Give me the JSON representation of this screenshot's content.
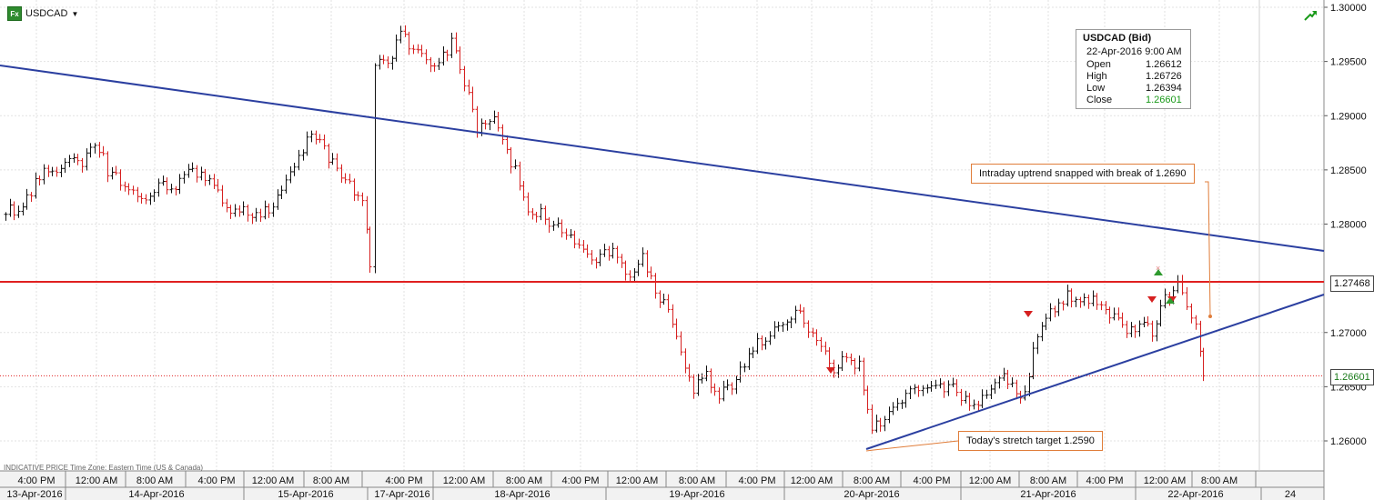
{
  "header": {
    "symbol": "USDCAD",
    "fx_badge": "Fx"
  },
  "info": {
    "title": "USDCAD (Bid)",
    "date": "22-Apr-2016 9:00 AM",
    "rows": [
      {
        "label": "Open",
        "value": "1.26612"
      },
      {
        "label": "High",
        "value": "1.26726"
      },
      {
        "label": "Low",
        "value": "1.26394"
      },
      {
        "label": "Close",
        "value": "1.26601"
      }
    ],
    "close_color": "#1a9a1a"
  },
  "annotations": {
    "uptrend": "Intraday uptrend snapped with break of 1.2690",
    "target": "Today's stretch target 1.2590"
  },
  "footer": {
    "text": "INDICATIVE PRICE   Time Zone: Eastern Time (US & Canada)"
  },
  "price_labels": {
    "resistance": "1.27468",
    "current": "1.26601"
  },
  "colors": {
    "up": "#111111",
    "down": "#d62020",
    "trend": "#2b3fa0",
    "resistance": "#e02020",
    "annot": "#e07d3a",
    "grid": "#e2e2e2"
  },
  "chart_data": {
    "type": "ohlc",
    "y_range": [
      1.255,
      1.3
    ],
    "y_ticks": [
      "1.30000",
      "1.29500",
      "1.29000",
      "1.28500",
      "1.28000",
      "1.27000",
      "1.26500",
      "1.26000"
    ],
    "resistance_level": 1.27468,
    "current_level": 1.26601,
    "time_ticks": [
      "4:00 PM",
      "12:00 AM",
      "8:00 AM",
      "4:00 PM",
      "12:00 AM",
      "8:00 AM",
      "4:00 PM",
      "12:00 AM",
      "8:00 AM",
      "4:00 PM",
      "12:00 AM",
      "8:00 AM",
      "4:00 PM",
      "12:00 AM",
      "8:00 AM",
      "4:00 PM",
      "12:00 AM",
      "8:00 AM",
      "4:00 PM",
      "12:00 AM",
      "8:00 AM"
    ],
    "date_ticks": [
      "13-Apr-2016",
      "14-Apr-2016",
      "15-Apr-2016",
      "17-Apr-2016",
      "18-Apr-2016",
      "19-Apr-2016",
      "20-Apr-2016",
      "21-Apr-2016",
      "22-Apr-2016",
      "24"
    ],
    "series": [
      {
        "x": 0,
        "c": 1.2815
      },
      {
        "x": 14,
        "c": 1.2808
      },
      {
        "x": 28,
        "c": 1.283
      },
      {
        "x": 42,
        "c": 1.2852
      },
      {
        "x": 56,
        "c": 1.2848
      },
      {
        "x": 70,
        "c": 1.2862
      },
      {
        "x": 84,
        "c": 1.2858
      },
      {
        "x": 98,
        "c": 1.2878
      },
      {
        "x": 112,
        "c": 1.285
      },
      {
        "x": 126,
        "c": 1.2838
      },
      {
        "x": 140,
        "c": 1.2832
      },
      {
        "x": 154,
        "c": 1.2822
      },
      {
        "x": 168,
        "c": 1.2838
      },
      {
        "x": 182,
        "c": 1.283
      },
      {
        "x": 196,
        "c": 1.2848
      },
      {
        "x": 210,
        "c": 1.2846
      },
      {
        "x": 224,
        "c": 1.2842
      },
      {
        "x": 238,
        "c": 1.2818
      },
      {
        "x": 252,
        "c": 1.2812
      },
      {
        "x": 266,
        "c": 1.2814
      },
      {
        "x": 280,
        "c": 1.2808
      },
      {
        "x": 294,
        "c": 1.2815
      },
      {
        "x": 308,
        "c": 1.2838
      },
      {
        "x": 322,
        "c": 1.286
      },
      {
        "x": 336,
        "c": 1.2885
      },
      {
        "x": 350,
        "c": 1.287
      },
      {
        "x": 364,
        "c": 1.2848
      },
      {
        "x": 378,
        "c": 1.2835
      },
      {
        "x": 392,
        "c": 1.2825
      },
      {
        "x": 400,
        "c": 1.2765
      },
      {
        "x": 406,
        "c": 1.2952
      },
      {
        "x": 420,
        "c": 1.295
      },
      {
        "x": 434,
        "c": 1.2975
      },
      {
        "x": 448,
        "c": 1.2962
      },
      {
        "x": 462,
        "c": 1.2952
      },
      {
        "x": 476,
        "c": 1.2948
      },
      {
        "x": 490,
        "c": 1.2968
      },
      {
        "x": 504,
        "c": 1.293
      },
      {
        "x": 518,
        "c": 1.2888
      },
      {
        "x": 532,
        "c": 1.29
      },
      {
        "x": 546,
        "c": 1.288
      },
      {
        "x": 560,
        "c": 1.2848
      },
      {
        "x": 574,
        "c": 1.281
      },
      {
        "x": 588,
        "c": 1.2812
      },
      {
        "x": 602,
        "c": 1.28
      },
      {
        "x": 616,
        "c": 1.279
      },
      {
        "x": 630,
        "c": 1.2778
      },
      {
        "x": 644,
        "c": 1.2768
      },
      {
        "x": 658,
        "c": 1.2772
      },
      {
        "x": 672,
        "c": 1.2774
      },
      {
        "x": 686,
        "c": 1.2752
      },
      {
        "x": 700,
        "c": 1.2768
      },
      {
        "x": 714,
        "c": 1.274
      },
      {
        "x": 728,
        "c": 1.2718
      },
      {
        "x": 742,
        "c": 1.268
      },
      {
        "x": 756,
        "c": 1.2648
      },
      {
        "x": 770,
        "c": 1.266
      },
      {
        "x": 784,
        "c": 1.264
      },
      {
        "x": 798,
        "c": 1.2652
      },
      {
        "x": 812,
        "c": 1.267
      },
      {
        "x": 826,
        "c": 1.269
      },
      {
        "x": 840,
        "c": 1.2695
      },
      {
        "x": 854,
        "c": 1.2712
      },
      {
        "x": 868,
        "c": 1.272
      },
      {
        "x": 882,
        "c": 1.2705
      },
      {
        "x": 896,
        "c": 1.269
      },
      {
        "x": 910,
        "c": 1.2665
      },
      {
        "x": 924,
        "c": 1.2678
      },
      {
        "x": 938,
        "c": 1.267
      },
      {
        "x": 952,
        "c": 1.2608
      },
      {
        "x": 966,
        "c": 1.2622
      },
      {
        "x": 980,
        "c": 1.2632
      },
      {
        "x": 994,
        "c": 1.2652
      },
      {
        "x": 1008,
        "c": 1.2652
      },
      {
        "x": 1022,
        "c": 1.2648
      },
      {
        "x": 1036,
        "c": 1.2652
      },
      {
        "x": 1050,
        "c": 1.264
      },
      {
        "x": 1064,
        "c": 1.2632
      },
      {
        "x": 1078,
        "c": 1.264
      },
      {
        "x": 1092,
        "c": 1.2662
      },
      {
        "x": 1106,
        "c": 1.265
      },
      {
        "x": 1120,
        "c": 1.264
      },
      {
        "x": 1134,
        "c": 1.27
      },
      {
        "x": 1148,
        "c": 1.2718
      },
      {
        "x": 1162,
        "c": 1.2732
      },
      {
        "x": 1176,
        "c": 1.2735
      },
      {
        "x": 1190,
        "c": 1.273
      },
      {
        "x": 1204,
        "c": 1.2728
      },
      {
        "x": 1218,
        "c": 1.2712
      },
      {
        "x": 1232,
        "c": 1.27
      },
      {
        "x": 1246,
        "c": 1.271
      },
      {
        "x": 1260,
        "c": 1.27
      },
      {
        "x": 1274,
        "c": 1.273
      },
      {
        "x": 1288,
        "c": 1.2742
      },
      {
        "x": 1298,
        "c": 1.272
      },
      {
        "x": 1308,
        "c": 1.2712
      },
      {
        "x": 1316,
        "c": 1.266
      }
    ]
  }
}
